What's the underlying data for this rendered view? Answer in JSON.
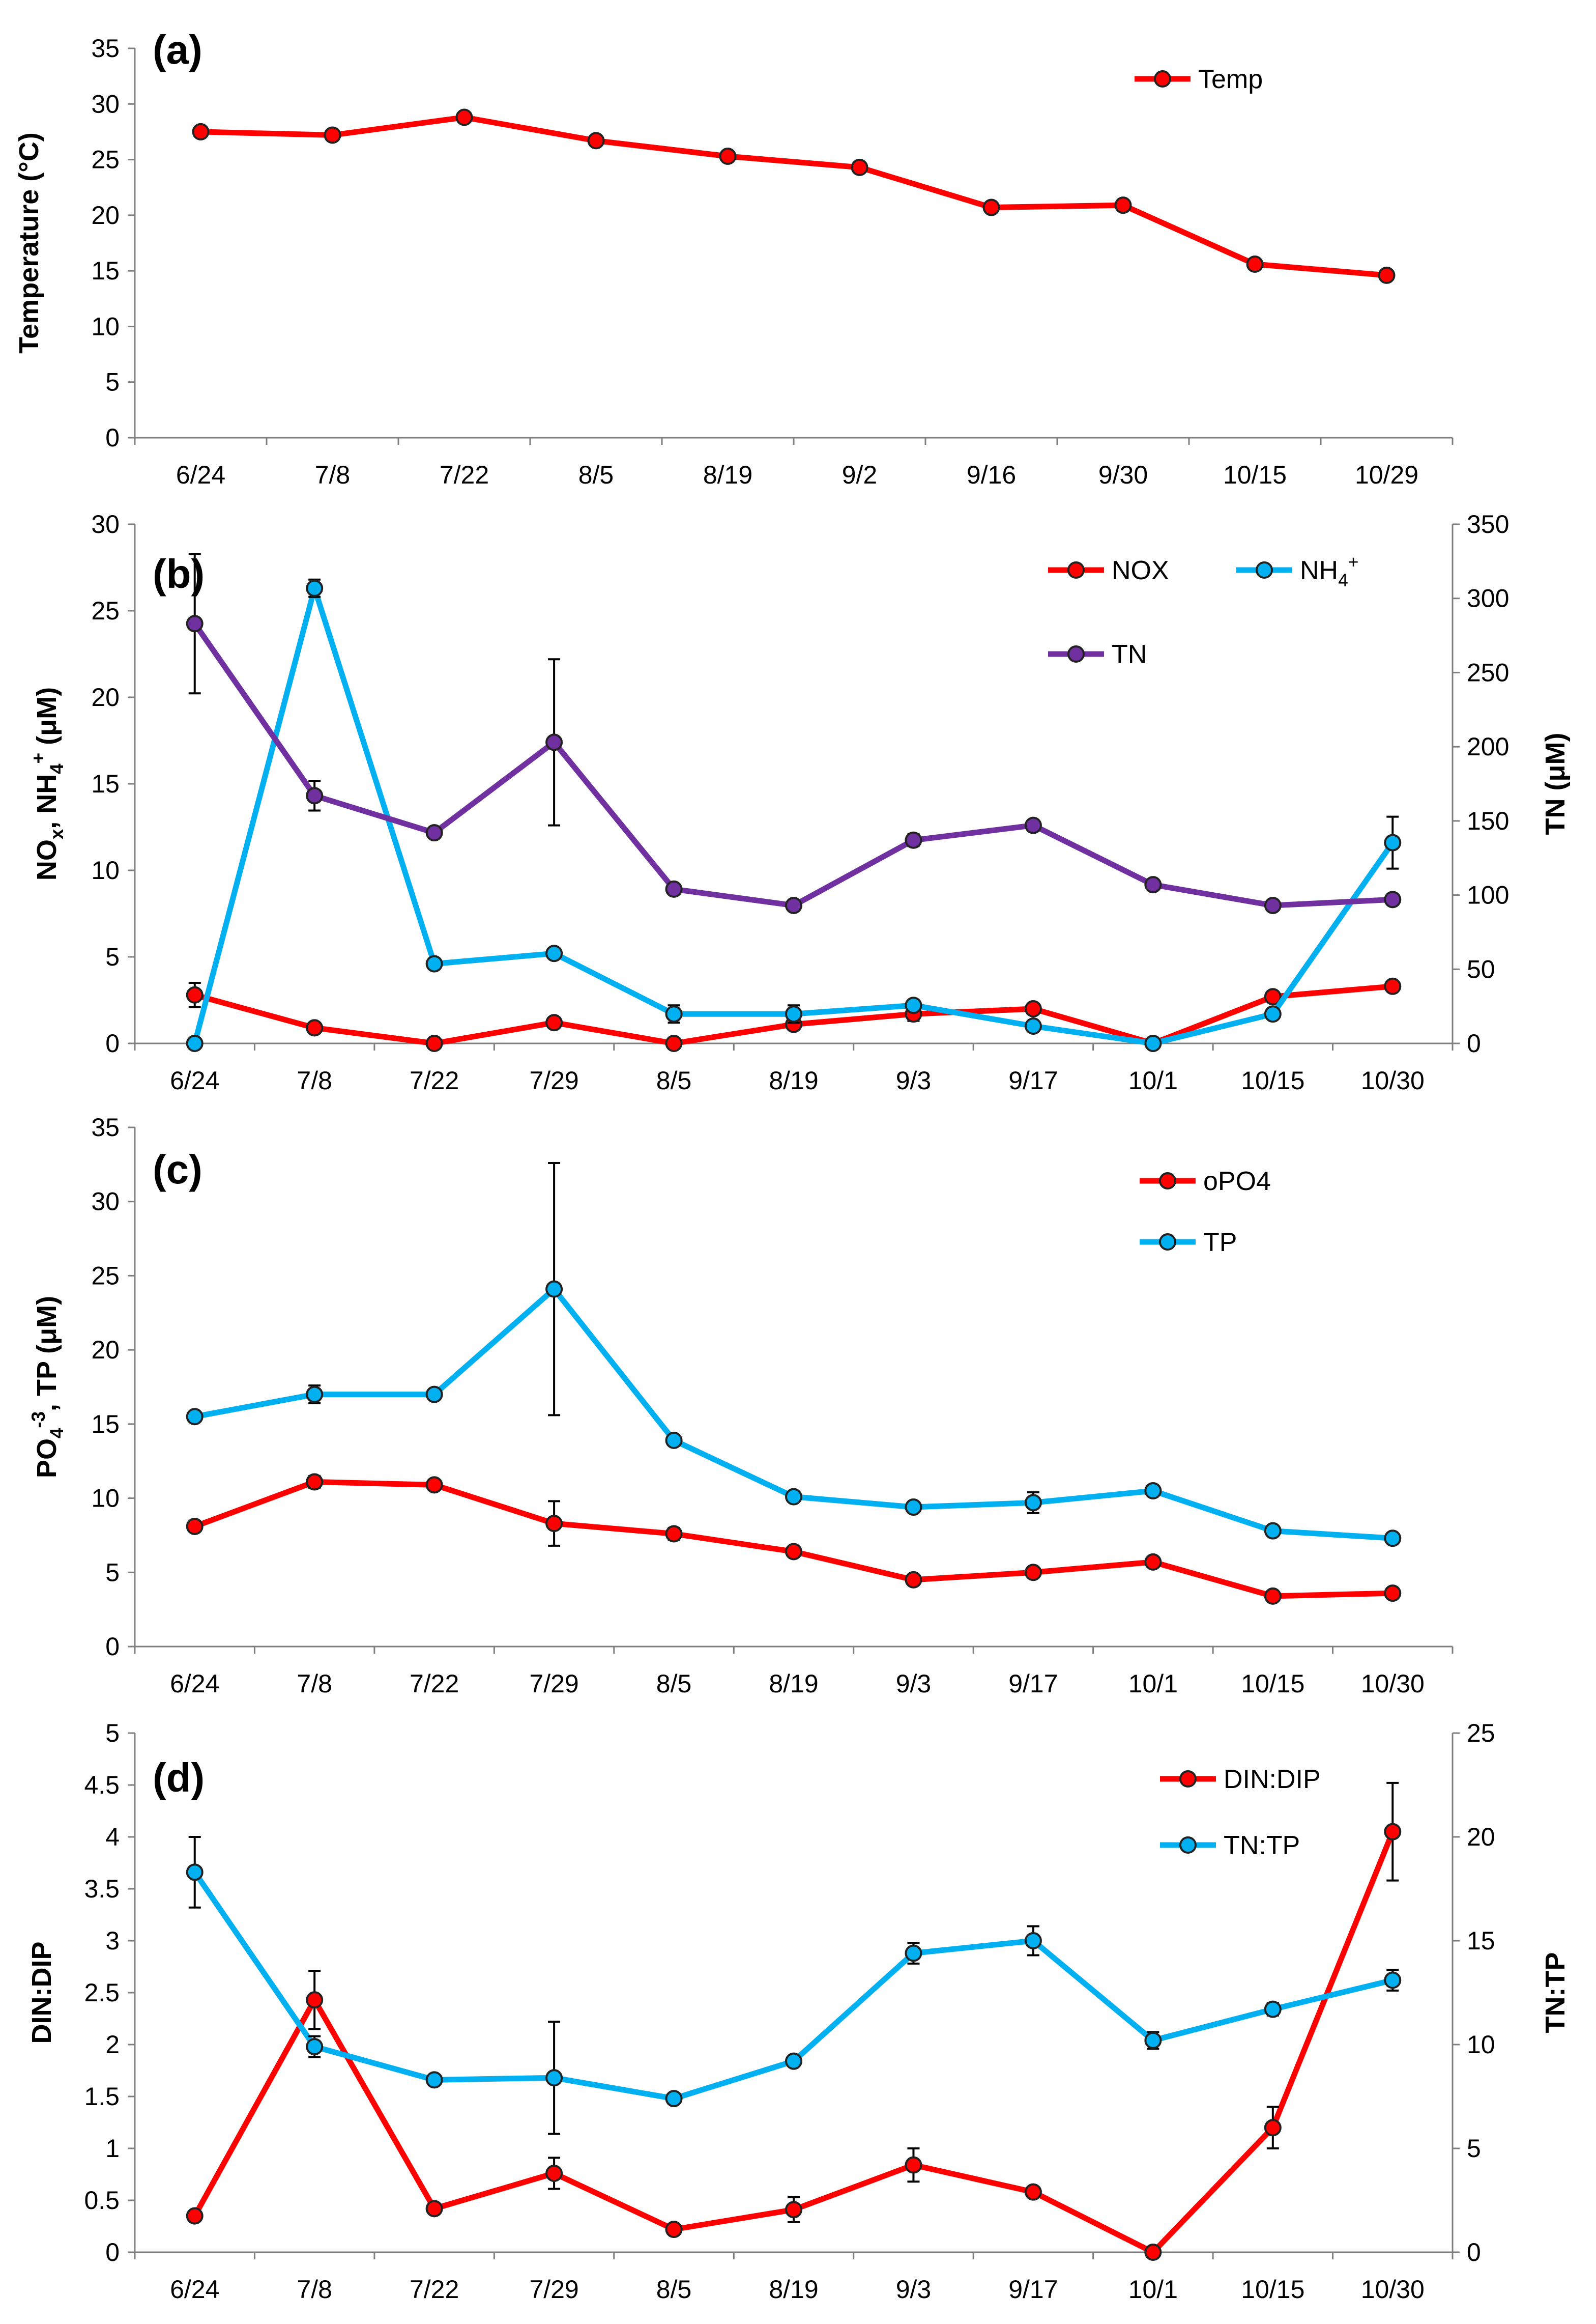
{
  "colors": {
    "red": "#ff0000",
    "blue": "#00b0f0",
    "purple": "#7030a0",
    "axis": "#7f7f7f",
    "errbar": "#000000"
  },
  "chart_data": [
    {
      "type": "line",
      "panel": "(a)",
      "categories": [
        "6/24",
        "7/8",
        "7/22",
        "8/5",
        "8/19",
        "9/2",
        "9/16",
        "9/30",
        "10/15",
        "10/29"
      ],
      "ylabel": "Temperature (°C)",
      "ylim": [
        0,
        35
      ],
      "yticks": [
        "0",
        "5",
        "10",
        "15",
        "20",
        "25",
        "30",
        "35"
      ],
      "legend_position": "top-right",
      "series": [
        {
          "name": "Temp",
          "color": "red",
          "axis": "left",
          "values": [
            27.5,
            27.2,
            28.8,
            26.7,
            25.3,
            24.3,
            20.7,
            20.9,
            15.6,
            14.6
          ]
        }
      ]
    },
    {
      "type": "line",
      "panel": "(b)",
      "categories": [
        "6/24",
        "7/8",
        "7/22",
        "7/29",
        "8/5",
        "8/19",
        "9/3",
        "9/17",
        "10/1",
        "10/15",
        "10/30"
      ],
      "ylabel": "NOx, NH4+ (μM)",
      "y2label": "TN (μM)",
      "ylim": [
        0,
        30
      ],
      "y2lim": [
        0,
        350
      ],
      "yticks": [
        "0",
        "5",
        "10",
        "15",
        "20",
        "25",
        "30"
      ],
      "y2ticks": [
        "0",
        "50",
        "100",
        "150",
        "200",
        "250",
        "300",
        "350"
      ],
      "legend_position": "top-right",
      "series": [
        {
          "name": "NOX",
          "color": "red",
          "axis": "left",
          "values": [
            2.8,
            0.9,
            0.0,
            1.2,
            0.0,
            1.1,
            1.7,
            2.0,
            0.0,
            2.7,
            3.3
          ],
          "errors": [
            0.7,
            0,
            0,
            0,
            0,
            0,
            0.4,
            0,
            0,
            0.3,
            0
          ]
        },
        {
          "name": "NH4+",
          "color": "blue",
          "axis": "left",
          "values": [
            0.0,
            26.3,
            4.6,
            5.2,
            1.7,
            1.7,
            2.2,
            1.0,
            0.0,
            1.7,
            11.6
          ],
          "errors": [
            0,
            0.5,
            0.3,
            0,
            0.5,
            0.5,
            0,
            0,
            0,
            0,
            1.5
          ]
        },
        {
          "name": "TN",
          "color": "purple",
          "axis": "right",
          "values": [
            283,
            167,
            142,
            203,
            104,
            93,
            137,
            147,
            107,
            93,
            97
          ],
          "errors": [
            47,
            10,
            0,
            56,
            0,
            0,
            4,
            0,
            0,
            0,
            0
          ]
        }
      ]
    },
    {
      "type": "line",
      "panel": "(c)",
      "categories": [
        "6/24",
        "7/8",
        "7/22",
        "7/29",
        "8/5",
        "8/19",
        "9/3",
        "9/17",
        "10/1",
        "10/15",
        "10/30"
      ],
      "ylabel": "PO4-3, TP (μM)",
      "ylim": [
        0,
        35
      ],
      "yticks": [
        "0",
        "5",
        "10",
        "15",
        "20",
        "25",
        "30",
        "35"
      ],
      "legend_position": "top-right",
      "series": [
        {
          "name": "oPO4",
          "color": "red",
          "axis": "left",
          "values": [
            8.1,
            11.1,
            10.9,
            8.3,
            7.6,
            6.4,
            4.5,
            5.0,
            5.7,
            3.4,
            3.6
          ],
          "errors": [
            0,
            0.4,
            0,
            1.5,
            0.4,
            0,
            0,
            0,
            0.3,
            0,
            0
          ]
        },
        {
          "name": "TP",
          "color": "blue",
          "axis": "left",
          "values": [
            15.5,
            17.0,
            17.0,
            24.1,
            13.9,
            10.1,
            9.4,
            9.7,
            10.5,
            7.8,
            7.3
          ],
          "errors": [
            0,
            0.6,
            0,
            8.5,
            0,
            0,
            0,
            0.7,
            0,
            0,
            0
          ]
        }
      ]
    },
    {
      "type": "line",
      "panel": "(d)",
      "categories": [
        "6/24",
        "7/8",
        "7/22",
        "7/29",
        "8/5",
        "8/19",
        "9/3",
        "9/17",
        "10/1",
        "10/15",
        "10/30"
      ],
      "ylabel": "DIN:DIP",
      "y2label": "TN:TP",
      "ylim": [
        0,
        5
      ],
      "y2lim": [
        0,
        25
      ],
      "yticks": [
        "0",
        "0.5",
        "1",
        "1.5",
        "2",
        "2.5",
        "3",
        "3.5",
        "4",
        "4.5",
        "5"
      ],
      "y2ticks": [
        "0",
        "5",
        "10",
        "15",
        "20",
        "25"
      ],
      "legend_position": "top-right",
      "series": [
        {
          "name": "DIN:DIP",
          "color": "red",
          "axis": "left",
          "values": [
            0.35,
            2.43,
            0.42,
            0.76,
            0.22,
            0.41,
            0.84,
            0.58,
            0.0,
            1.2,
            4.05
          ],
          "errors": [
            0,
            0.28,
            0,
            0.15,
            0,
            0.12,
            0.16,
            0.05,
            0,
            0.2,
            0.47
          ]
        },
        {
          "name": "TN:TP",
          "color": "blue",
          "axis": "right",
          "values": [
            18.3,
            9.9,
            8.3,
            8.4,
            7.4,
            9.2,
            14.4,
            15.0,
            10.2,
            11.7,
            13.1
          ],
          "errors": [
            1.7,
            0.5,
            0,
            2.7,
            0,
            0,
            0.5,
            0.7,
            0.4,
            0.3,
            0.5
          ]
        }
      ]
    }
  ],
  "panels": [
    {
      "label": "(a)",
      "legend": [
        "Temp"
      ]
    },
    {
      "label": "(b)",
      "legend": [
        "NOX",
        "NH4+",
        "TN"
      ]
    },
    {
      "label": "(c)",
      "legend": [
        "oPO4",
        "TP"
      ]
    },
    {
      "label": "(d)",
      "legend": [
        "DIN:DIP",
        "TN:TP"
      ]
    }
  ]
}
